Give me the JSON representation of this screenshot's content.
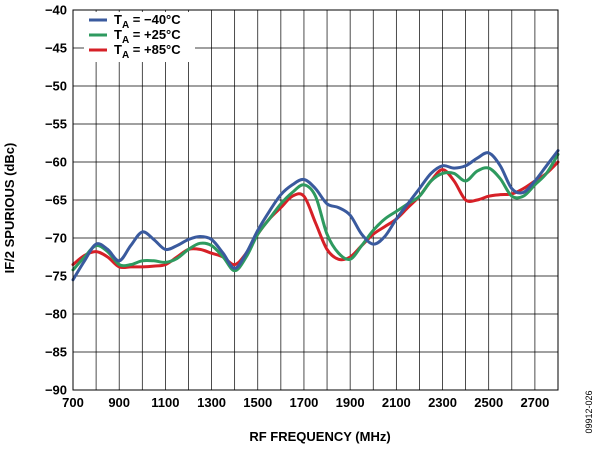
{
  "chart_data": {
    "type": "line",
    "xlabel": "RF FREQUENCY (MHz)",
    "ylabel": "IF/2 SPURIOUS (dBc)",
    "xlim": [
      700,
      2800
    ],
    "ylim": [
      -90,
      -40
    ],
    "xticks": [
      700,
      900,
      1100,
      1300,
      1500,
      1700,
      1900,
      2100,
      2300,
      2500,
      2700
    ],
    "xtick_labels": [
      "700",
      "900",
      "1100",
      "1300",
      "1500",
      "1700",
      "1900",
      "2100",
      "2300",
      "2500",
      "2700"
    ],
    "xgrid": [
      700,
      800,
      900,
      1000,
      1100,
      1200,
      1300,
      1400,
      1500,
      1600,
      1700,
      1800,
      1900,
      2000,
      2100,
      2200,
      2300,
      2400,
      2500,
      2600,
      2700,
      2800
    ],
    "yticks": [
      -90,
      -85,
      -80,
      -75,
      -70,
      -65,
      -60,
      -55,
      -50,
      -45,
      -40
    ],
    "ytick_labels": [
      "−90",
      "−85",
      "−80",
      "−75",
      "−70",
      "−65",
      "−60",
      "−55",
      "−50",
      "−45",
      "−40"
    ],
    "grid": true,
    "legend_position": "top-left",
    "series": [
      {
        "name_main": "T",
        "name_sub": "A",
        "name_rest": " = −40°C",
        "color": "#3a5a9e",
        "x": [
          700,
          750,
          800,
          850,
          900,
          950,
          1000,
          1050,
          1100,
          1150,
          1200,
          1250,
          1300,
          1350,
          1400,
          1450,
          1500,
          1550,
          1600,
          1650,
          1700,
          1750,
          1800,
          1850,
          1900,
          1950,
          2000,
          2050,
          2100,
          2150,
          2200,
          2250,
          2300,
          2350,
          2400,
          2450,
          2500,
          2550,
          2600,
          2650,
          2700,
          2750,
          2800
        ],
        "y": [
          -75.5,
          -73,
          -70.8,
          -71.5,
          -73,
          -71,
          -69.2,
          -70.2,
          -71.5,
          -71,
          -70.2,
          -69.8,
          -70.2,
          -72,
          -74,
          -72,
          -69,
          -66.5,
          -64.3,
          -63,
          -62.3,
          -63.5,
          -65.5,
          -66,
          -67,
          -69.5,
          -70.8,
          -69.8,
          -67.5,
          -65.5,
          -63.5,
          -61.5,
          -60.5,
          -60.8,
          -60.5,
          -59.5,
          -58.8,
          -60.5,
          -63.5,
          -64,
          -62.5,
          -60.5,
          -58.5
        ]
      },
      {
        "name_main": "T",
        "name_sub": "A",
        "name_rest": " = +25°C",
        "color": "#2e9a5f",
        "x": [
          700,
          750,
          800,
          850,
          900,
          950,
          1000,
          1050,
          1100,
          1150,
          1200,
          1250,
          1300,
          1350,
          1400,
          1450,
          1500,
          1550,
          1600,
          1650,
          1700,
          1750,
          1800,
          1850,
          1900,
          1950,
          2000,
          2050,
          2100,
          2150,
          2200,
          2250,
          2300,
          2350,
          2400,
          2450,
          2500,
          2550,
          2600,
          2650,
          2700,
          2750,
          2800
        ],
        "y": [
          -74.2,
          -72.5,
          -71,
          -71.8,
          -73.5,
          -73.5,
          -73,
          -73,
          -73.2,
          -72.7,
          -71.5,
          -70.7,
          -71,
          -72.5,
          -74.3,
          -72.5,
          -69.5,
          -67.5,
          -65.5,
          -64,
          -63,
          -64.5,
          -69.5,
          -72,
          -72.8,
          -71,
          -69,
          -67.5,
          -66.5,
          -65.5,
          -64.5,
          -62.5,
          -61.5,
          -61.5,
          -62.5,
          -61.2,
          -60.8,
          -62.2,
          -64.5,
          -64.5,
          -63,
          -61.5,
          -59
        ]
      },
      {
        "name_main": "T",
        "name_sub": "A",
        "name_rest": " = +85°C",
        "color": "#d62027",
        "x": [
          700,
          750,
          800,
          850,
          900,
          950,
          1000,
          1050,
          1100,
          1150,
          1200,
          1250,
          1300,
          1350,
          1400,
          1450,
          1500,
          1550,
          1600,
          1650,
          1700,
          1750,
          1800,
          1850,
          1900,
          1950,
          2000,
          2050,
          2100,
          2150,
          2200,
          2250,
          2300,
          2350,
          2400,
          2450,
          2500,
          2550,
          2600,
          2650,
          2700,
          2750,
          2800
        ],
        "y": [
          -73.5,
          -72.3,
          -71.8,
          -72.5,
          -73.8,
          -73.8,
          -73.8,
          -73.7,
          -73.5,
          -72.5,
          -71.5,
          -71.5,
          -72,
          -72.5,
          -73.5,
          -72,
          -69.5,
          -67.5,
          -66,
          -64.5,
          -64.5,
          -68,
          -71.5,
          -72.8,
          -72.5,
          -71,
          -69.5,
          -68.5,
          -67.5,
          -66,
          -64.5,
          -62.5,
          -61,
          -62.5,
          -65,
          -65,
          -64.5,
          -64.3,
          -64.2,
          -63.5,
          -62.5,
          -61.5,
          -60
        ]
      }
    ]
  },
  "figure_id": "09912-026"
}
